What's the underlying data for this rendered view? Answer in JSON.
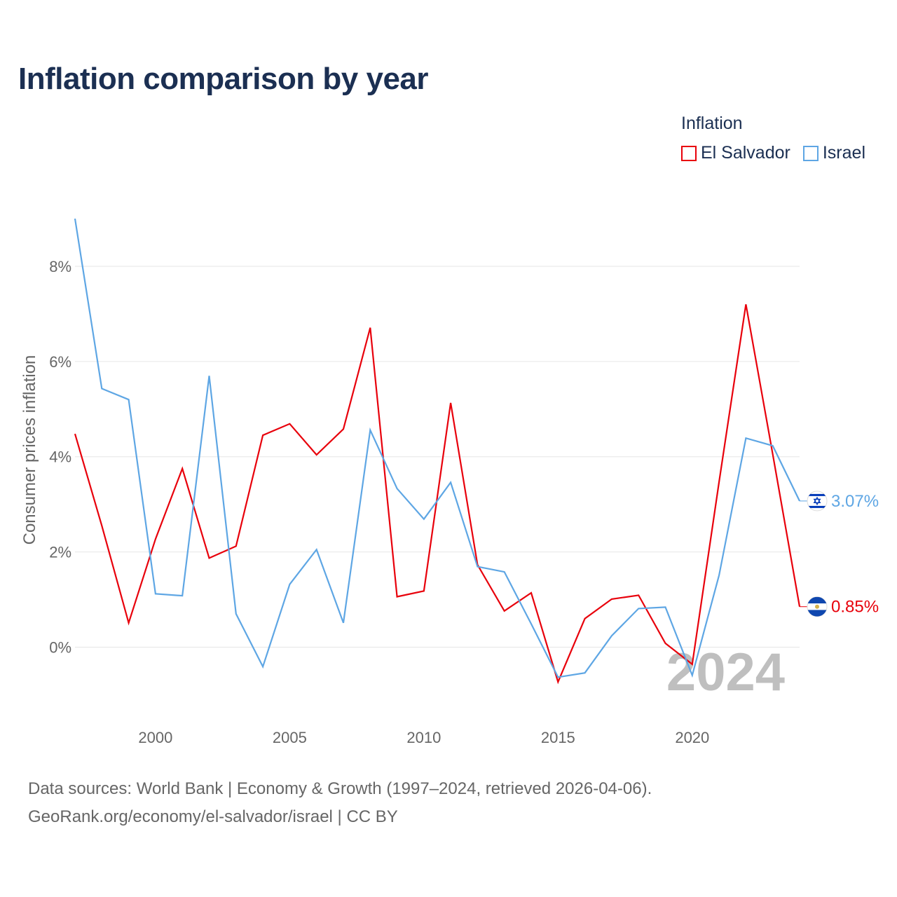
{
  "chart_data": {
    "type": "line",
    "title": "Inflation comparison by year",
    "legend_title": "Inflation",
    "ylabel": "Consumer prices inflation",
    "xlabel": "",
    "x": [
      1997,
      1998,
      1999,
      2000,
      2001,
      2002,
      2003,
      2004,
      2005,
      2006,
      2007,
      2008,
      2009,
      2010,
      2011,
      2012,
      2013,
      2014,
      2015,
      2016,
      2017,
      2018,
      2019,
      2020,
      2021,
      2022,
      2023,
      2024
    ],
    "xticks": [
      2000,
      2005,
      2010,
      2015,
      2020
    ],
    "xtick_labels": [
      "2000",
      "2005",
      "2010",
      "2015",
      "2020"
    ],
    "yticks": [
      0,
      2,
      4,
      6,
      8
    ],
    "ytick_labels": [
      "0%",
      "2%",
      "4%",
      "6%",
      "8%"
    ],
    "xlim": [
      1997,
      2024
    ],
    "ylim": [
      -1.2,
      9.0
    ],
    "year_watermark": "2024",
    "series": [
      {
        "name": "El Salvador",
        "color": "#e8000b",
        "end_label": "0.85%",
        "flag": "el-salvador-flag-icon",
        "values": [
          4.48,
          2.55,
          0.51,
          2.27,
          3.75,
          1.87,
          2.12,
          4.45,
          4.69,
          4.04,
          4.58,
          6.71,
          1.06,
          1.18,
          5.13,
          1.73,
          0.76,
          1.14,
          -0.73,
          0.6,
          1.01,
          1.09,
          0.08,
          -0.36,
          3.47,
          7.2,
          4.05,
          0.85
        ]
      },
      {
        "name": "Israel",
        "color": "#5ea6e4",
        "end_label": "3.07%",
        "flag": "israel-flag-icon",
        "values": [
          9.0,
          5.43,
          5.2,
          1.12,
          1.08,
          5.7,
          0.7,
          -0.41,
          1.32,
          2.05,
          0.51,
          4.56,
          3.33,
          2.69,
          3.46,
          1.69,
          1.58,
          0.49,
          -0.63,
          -0.54,
          0.24,
          0.81,
          0.84,
          -0.59,
          1.51,
          4.39,
          4.23,
          3.07
        ]
      }
    ]
  },
  "footer": {
    "line1": "Data sources: World Bank | Economy & Growth (1997–2024, retrieved 2026-04-06).",
    "line2": "GeoRank.org/economy/el-salvador/israel | CC BY"
  }
}
